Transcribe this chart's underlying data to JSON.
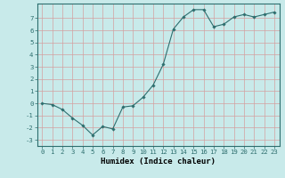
{
  "x": [
    0,
    1,
    2,
    3,
    4,
    5,
    6,
    7,
    8,
    9,
    10,
    11,
    12,
    13,
    14,
    15,
    16,
    17,
    18,
    19,
    20,
    21,
    22,
    23
  ],
  "y": [
    0.0,
    -0.1,
    -0.5,
    -1.2,
    -1.8,
    -2.6,
    -1.9,
    -2.1,
    -0.3,
    -0.2,
    0.5,
    1.5,
    3.2,
    6.1,
    7.1,
    7.7,
    7.7,
    6.3,
    6.5,
    7.1,
    7.3,
    7.1,
    7.3,
    7.5
  ],
  "xlabel": "Humidex (Indice chaleur)",
  "ylim": [
    -3.5,
    8.2
  ],
  "xlim": [
    -0.5,
    23.5
  ],
  "yticks": [
    -3,
    -2,
    -1,
    0,
    1,
    2,
    3,
    4,
    5,
    6,
    7
  ],
  "xticks": [
    0,
    1,
    2,
    3,
    4,
    5,
    6,
    7,
    8,
    9,
    10,
    11,
    12,
    13,
    14,
    15,
    16,
    17,
    18,
    19,
    20,
    21,
    22,
    23
  ],
  "line_color": "#2d6e6e",
  "marker_color": "#2d6e6e",
  "bg_color": "#c8eaea",
  "grid_color": "#d4a0a0",
  "xlabel_fontsize": 6.5,
  "tick_fontsize": 5.2
}
